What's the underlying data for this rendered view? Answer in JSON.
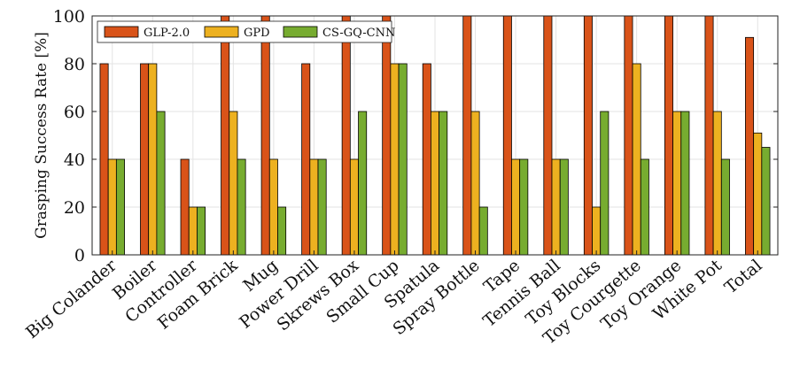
{
  "chart_data": {
    "type": "bar",
    "ylabel": "Grasping Success Rate [%]",
    "xlabel": "",
    "title": "",
    "ylim": [
      0,
      100
    ],
    "yticks": [
      0,
      20,
      40,
      60,
      80,
      100
    ],
    "grid": true,
    "legend_position": "top-left",
    "categories": [
      "Big Colander",
      "Boiler",
      "Controller",
      "Foam Brick",
      "Mug",
      "Power Drill",
      "Skrews Box",
      "Small Cup",
      "Spatula",
      "Spray Bottle",
      "Tape",
      "Tennis Ball",
      "Toy Blocks",
      "Toy Courgette",
      "Toy Orange",
      "White Pot",
      "Total"
    ],
    "series": [
      {
        "name": "GLP-2.0",
        "color": "#d95319",
        "values": [
          80,
          80,
          40,
          100,
          100,
          80,
          100,
          100,
          80,
          100,
          100,
          100,
          100,
          100,
          100,
          100,
          91
        ]
      },
      {
        "name": "GPD",
        "color": "#edb120",
        "values": [
          40,
          80,
          20,
          60,
          40,
          40,
          40,
          80,
          60,
          60,
          40,
          40,
          20,
          80,
          60,
          60,
          51
        ]
      },
      {
        "name": "CS-GQ-CNN",
        "color": "#77ac30",
        "values": [
          40,
          60,
          20,
          40,
          20,
          40,
          60,
          80,
          60,
          20,
          40,
          40,
          60,
          40,
          60,
          40,
          45
        ]
      }
    ]
  }
}
